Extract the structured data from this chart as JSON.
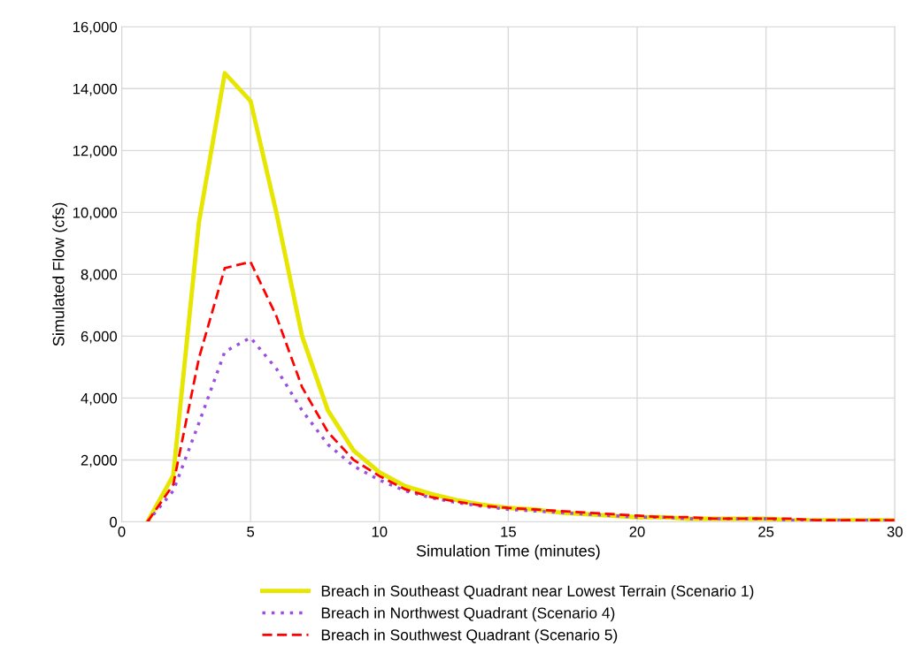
{
  "chart_data": {
    "type": "line",
    "xlabel": "Simulation Time (minutes)",
    "ylabel": "Simulated Flow (cfs)",
    "x": [
      1,
      2,
      3,
      4,
      5,
      6,
      7,
      8,
      9,
      10,
      11,
      12,
      13,
      14,
      15,
      16,
      17,
      18,
      19,
      20,
      21,
      22,
      23,
      24,
      25,
      26,
      27,
      28,
      29,
      30
    ],
    "xlim": [
      0,
      30
    ],
    "xticks": [
      0,
      5,
      10,
      15,
      20,
      25,
      30
    ],
    "ylim": [
      0,
      16000
    ],
    "yticks": [
      {
        "value": 0,
        "label": "0"
      },
      {
        "value": 2000,
        "label": "2,000"
      },
      {
        "value": 4000,
        "label": "4,000"
      },
      {
        "value": 6000,
        "label": "6,000"
      },
      {
        "value": 8000,
        "label": "8,000"
      },
      {
        "value": 10000,
        "label": "10,000"
      },
      {
        "value": 12000,
        "label": "12,000"
      },
      {
        "value": 14000,
        "label": "14,000"
      },
      {
        "value": 16000,
        "label": "16,000"
      }
    ],
    "grid": true,
    "legend": "bottom",
    "series": [
      {
        "name": "Breach in Southeast Quadrant near Lowest Terrain (Scenario 1)",
        "color": "#e6e600",
        "line_style": "solid",
        "values": [
          0,
          1500,
          9700,
          14500,
          13600,
          10000,
          6000,
          3600,
          2300,
          1600,
          1150,
          900,
          700,
          550,
          450,
          400,
          300,
          250,
          200,
          150,
          150,
          100,
          100,
          100,
          100,
          50,
          50,
          50,
          50,
          50
        ]
      },
      {
        "name": "Breach in Northwest Quadrant (Scenario 4)",
        "color": "#9b4fe0",
        "line_style": "dotted",
        "values": [
          0,
          1000,
          3200,
          5500,
          5950,
          4950,
          3600,
          2500,
          1800,
          1350,
          1000,
          780,
          620,
          500,
          400,
          350,
          300,
          250,
          200,
          150,
          150,
          100,
          100,
          100,
          100,
          50,
          50,
          50,
          50,
          50
        ]
      },
      {
        "name": "Breach in Southwest Quadrant (Scenario 5)",
        "color": "#ff0000",
        "line_style": "dashed",
        "values": [
          0,
          1200,
          5300,
          8200,
          8400,
          6650,
          4350,
          2900,
          2000,
          1480,
          1050,
          800,
          650,
          520,
          450,
          400,
          350,
          300,
          250,
          200,
          150,
          150,
          100,
          100,
          100,
          100,
          50,
          50,
          50,
          50
        ]
      }
    ]
  }
}
